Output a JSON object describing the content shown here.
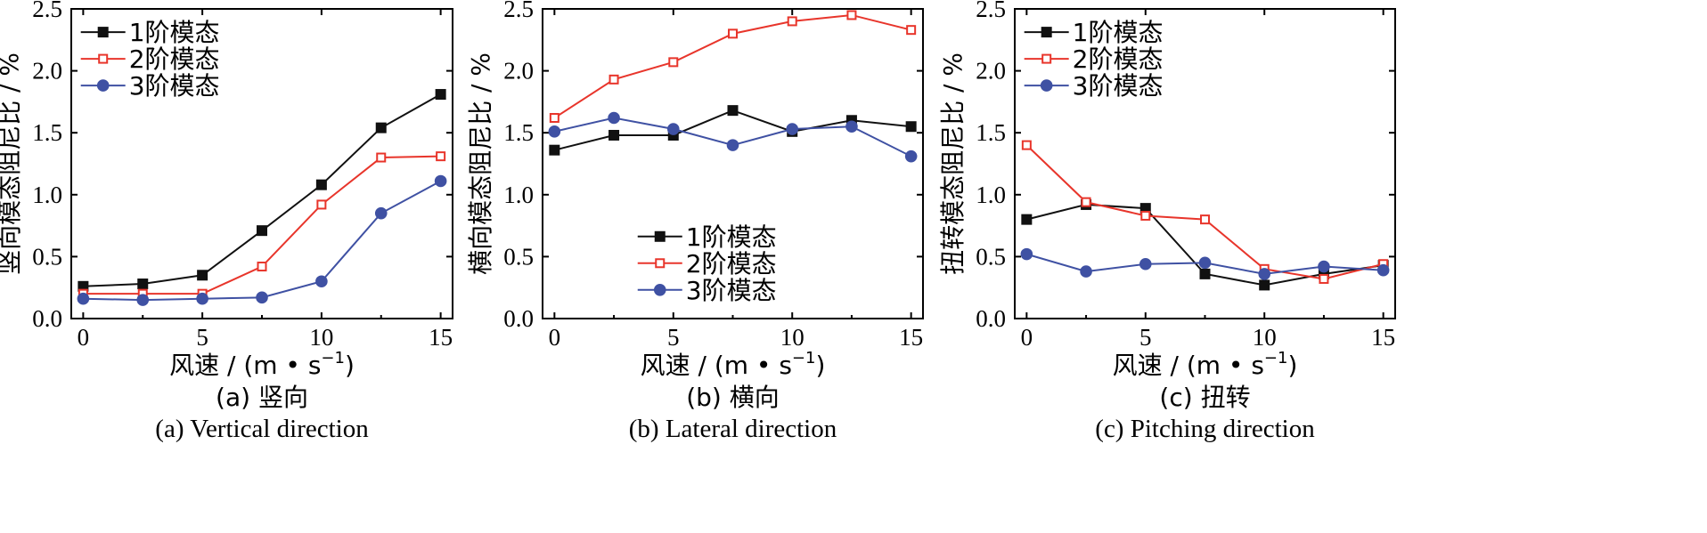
{
  "colors": {
    "mode1": "#111111",
    "mode2": "#e8352b",
    "mode3": "#3f51a3"
  },
  "chart_data": [
    {
      "type": "line",
      "panel": "a",
      "xlabel": "风速 / (m • s",
      "xlabel_sup": "−1",
      "xlabel_close": ")",
      "ylabel": "竖向模态阻尼比 / %",
      "caption_cn": "(a) 竖向",
      "caption_en": "(a) Vertical direction",
      "xlim": [
        -0.5,
        15.5
      ],
      "ylim": [
        0,
        2.5
      ],
      "xticks": [
        0,
        5,
        10,
        15
      ],
      "yticks": [
        0.0,
        0.5,
        1.0,
        1.5,
        2.0,
        2.5
      ],
      "yticklabels": [
        "0.0",
        "0.5",
        "1.0",
        "1.5",
        "2.0",
        "2.5"
      ],
      "legend_position": "top-left",
      "x": [
        0,
        2.5,
        5,
        7.5,
        10,
        12.5,
        15
      ],
      "series": [
        {
          "name": "1阶模态",
          "marker": "filled-square",
          "color_key": "mode1",
          "values": [
            0.26,
            0.28,
            0.35,
            0.71,
            1.08,
            1.54,
            1.81
          ]
        },
        {
          "name": "2阶模态",
          "marker": "open-square",
          "color_key": "mode2",
          "values": [
            0.2,
            0.2,
            0.2,
            0.42,
            0.92,
            1.3,
            1.31
          ]
        },
        {
          "name": "3阶模态",
          "marker": "filled-circle",
          "color_key": "mode3",
          "values": [
            0.16,
            0.15,
            0.16,
            0.17,
            0.3,
            0.85,
            1.11
          ]
        }
      ]
    },
    {
      "type": "line",
      "panel": "b",
      "xlabel": "风速 / (m • s",
      "xlabel_sup": "−1",
      "xlabel_close": ")",
      "ylabel": "横向模态阻尼比 / %",
      "caption_cn": "(b) 横向",
      "caption_en": "(b) Lateral direction",
      "xlim": [
        -0.5,
        15.5
      ],
      "ylim": [
        0,
        2.5
      ],
      "xticks": [
        0,
        5,
        10,
        15
      ],
      "yticks": [
        0.0,
        0.5,
        1.0,
        1.5,
        2.0,
        2.5
      ],
      "yticklabels": [
        "0.0",
        "0.5",
        "1.0",
        "1.5",
        "2.0",
        "2.5"
      ],
      "legend_position": "bottom-left",
      "x": [
        0,
        2.5,
        5,
        7.5,
        10,
        12.5,
        15
      ],
      "series": [
        {
          "name": "1阶模态",
          "marker": "filled-square",
          "color_key": "mode1",
          "values": [
            1.36,
            1.48,
            1.48,
            1.68,
            1.51,
            1.6,
            1.55
          ]
        },
        {
          "name": "2阶模态",
          "marker": "open-square",
          "color_key": "mode2",
          "values": [
            1.62,
            1.93,
            2.07,
            2.3,
            2.4,
            2.45,
            2.33
          ]
        },
        {
          "name": "3阶模态",
          "marker": "filled-circle",
          "color_key": "mode3",
          "values": [
            1.51,
            1.62,
            1.53,
            1.4,
            1.53,
            1.55,
            1.31
          ]
        }
      ]
    },
    {
      "type": "line",
      "panel": "c",
      "xlabel": "风速 / (m • s",
      "xlabel_sup": "−1",
      "xlabel_close": ")",
      "ylabel": "扭转模态阻尼比 / %",
      "caption_cn": "(c) 扭转",
      "caption_en": "(c) Pitching direction",
      "xlim": [
        -0.5,
        15.5
      ],
      "ylim": [
        0,
        2.5
      ],
      "xticks": [
        0,
        5,
        10,
        15
      ],
      "yticks": [
        0.0,
        0.5,
        1.0,
        1.5,
        2.0,
        2.5
      ],
      "yticklabels": [
        "0.0",
        "0.5",
        "1.0",
        "1.5",
        "2.0",
        "2.5"
      ],
      "legend_position": "top-left",
      "x": [
        0,
        2.5,
        5,
        7.5,
        10,
        12.5,
        15
      ],
      "series": [
        {
          "name": "1阶模态",
          "marker": "filled-square",
          "color_key": "mode1",
          "values": [
            0.8,
            0.92,
            0.89,
            0.36,
            0.27,
            0.36,
            0.43
          ]
        },
        {
          "name": "2阶模态",
          "marker": "open-square",
          "color_key": "mode2",
          "values": [
            1.4,
            0.94,
            0.83,
            0.8,
            0.4,
            0.32,
            0.44
          ]
        },
        {
          "name": "3阶模态",
          "marker": "filled-circle",
          "color_key": "mode3",
          "values": [
            0.52,
            0.38,
            0.44,
            0.45,
            0.36,
            0.42,
            0.39
          ]
        }
      ]
    }
  ]
}
